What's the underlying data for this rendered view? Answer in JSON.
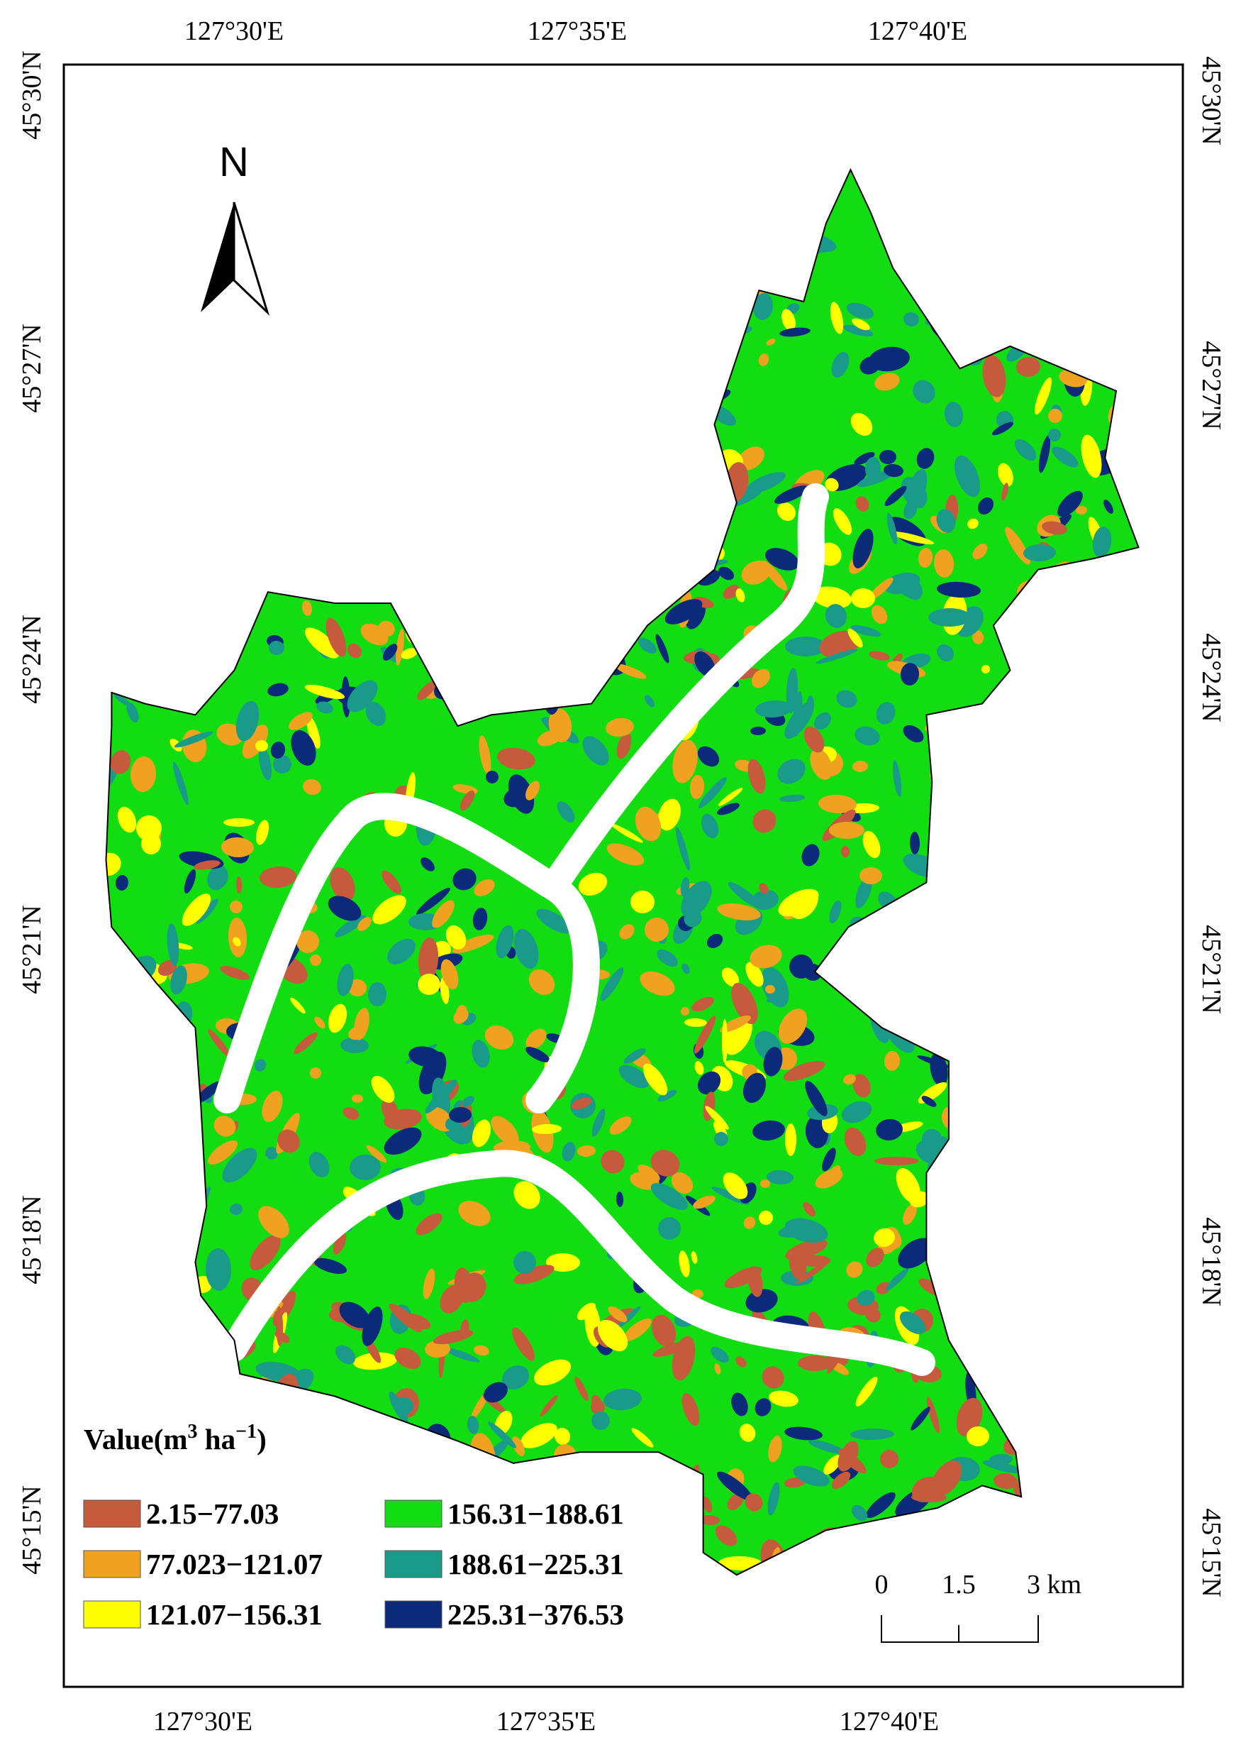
{
  "axes": {
    "top_labels": [
      "127°30'E",
      "127°35'E",
      "127°40'E"
    ],
    "bottom_labels": [
      "127°30'E",
      "127°35'E",
      "127°40'E"
    ],
    "left_labels": [
      "45°30'N",
      "45°27'N",
      "45°24'N",
      "45°21'N",
      "45°18'N",
      "45°15'N"
    ],
    "right_labels": [
      "45°30'N",
      "45°27'N",
      "45°24'N",
      "45°21'N",
      "45°18'N",
      "45°15'N"
    ]
  },
  "north_arrow": {
    "label": "N"
  },
  "legend": {
    "title": {
      "text": "Value(m",
      "sup1": "3",
      "mid": " ha",
      "sup2": "−1",
      "end": ")"
    },
    "items": [
      {
        "label": "2.15−77.03",
        "color": "#c65a3c"
      },
      {
        "label": "77.023−121.07",
        "color": "#eea21f"
      },
      {
        "label": "121.07−156.31",
        "color": "#ffff00"
      },
      {
        "label": "156.31−188.61",
        "color": "#11dd11"
      },
      {
        "label": "188.61−225.31",
        "color": "#1a9b8a"
      },
      {
        "label": "225.31−376.53",
        "color": "#0b2a7a"
      }
    ]
  },
  "scale_bar": {
    "labels": [
      "0",
      "1.5",
      "3 km"
    ]
  }
}
